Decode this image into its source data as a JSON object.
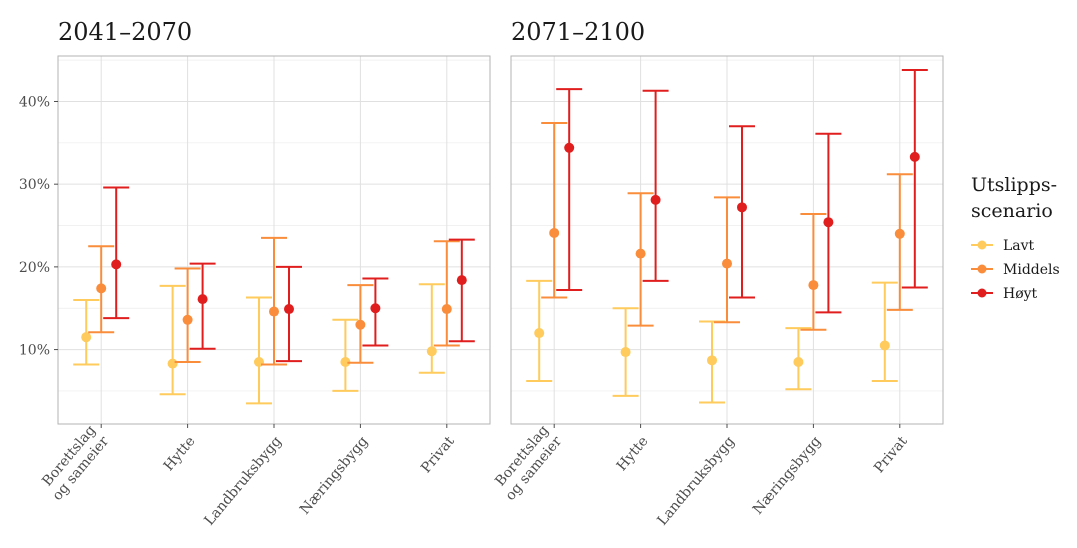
{
  "chart_data": {
    "type": "errorbar",
    "y_axis": {
      "ylim": [
        1,
        45.5
      ],
      "ticks": [
        10,
        20,
        30,
        40
      ],
      "tick_labels": [
        "10%",
        "20%",
        "30%",
        "40%"
      ],
      "minor_ticks": [
        5,
        15,
        25,
        35,
        45
      ]
    },
    "grid": true,
    "legend": {
      "title_lines": [
        "Utslipps-",
        "scenario"
      ],
      "position": "right",
      "items": [
        {
          "label": "Lavt",
          "color": "#fecb5c"
        },
        {
          "label": "Middels",
          "color": "#f98d3c"
        },
        {
          "label": "Høyt",
          "color": "#e01e1e"
        }
      ]
    },
    "categories": [
      {
        "lines": [
          "Borettslag",
          "og sameier"
        ]
      },
      {
        "lines": [
          "Hytte"
        ]
      },
      {
        "lines": [
          "Landbruksbygg"
        ]
      },
      {
        "lines": [
          "Næringsbygg"
        ]
      },
      {
        "lines": [
          "Privat"
        ]
      }
    ],
    "panels": [
      {
        "title": "2041–2070",
        "series": [
          {
            "name": "Lavt",
            "points": [
              {
                "mid": 11.5,
                "low": 8.2,
                "high": 16.0
              },
              {
                "mid": 8.3,
                "low": 4.6,
                "high": 17.7
              },
              {
                "mid": 8.5,
                "low": 3.5,
                "high": 16.3
              },
              {
                "mid": 8.5,
                "low": 5.0,
                "high": 13.6
              },
              {
                "mid": 9.8,
                "low": 7.2,
                "high": 17.9
              }
            ]
          },
          {
            "name": "Middels",
            "points": [
              {
                "mid": 17.4,
                "low": 12.1,
                "high": 22.5
              },
              {
                "mid": 13.6,
                "low": 8.5,
                "high": 19.8
              },
              {
                "mid": 14.6,
                "low": 8.2,
                "high": 23.5
              },
              {
                "mid": 13.0,
                "low": 8.4,
                "high": 17.8
              },
              {
                "mid": 14.9,
                "low": 10.5,
                "high": 23.1
              }
            ]
          },
          {
            "name": "Høyt",
            "points": [
              {
                "mid": 20.3,
                "low": 13.8,
                "high": 29.6
              },
              {
                "mid": 16.1,
                "low": 10.1,
                "high": 20.4
              },
              {
                "mid": 14.9,
                "low": 8.6,
                "high": 20.0
              },
              {
                "mid": 15.0,
                "low": 10.5,
                "high": 18.6
              },
              {
                "mid": 18.4,
                "low": 11.0,
                "high": 23.3
              }
            ]
          }
        ]
      },
      {
        "title": "2071–2100",
        "series": [
          {
            "name": "Lavt",
            "points": [
              {
                "mid": 12.0,
                "low": 6.2,
                "high": 18.3
              },
              {
                "mid": 9.7,
                "low": 4.4,
                "high": 15.0
              },
              {
                "mid": 8.7,
                "low": 3.6,
                "high": 13.4
              },
              {
                "mid": 8.5,
                "low": 5.2,
                "high": 12.6
              },
              {
                "mid": 10.5,
                "low": 6.2,
                "high": 18.1
              }
            ]
          },
          {
            "name": "Middels",
            "points": [
              {
                "mid": 24.1,
                "low": 16.3,
                "high": 37.4
              },
              {
                "mid": 21.6,
                "low": 12.9,
                "high": 28.9
              },
              {
                "mid": 20.4,
                "low": 13.3,
                "high": 28.4
              },
              {
                "mid": 17.8,
                "low": 12.4,
                "high": 26.4
              },
              {
                "mid": 24.0,
                "low": 14.8,
                "high": 31.2
              }
            ]
          },
          {
            "name": "Høyt",
            "points": [
              {
                "mid": 34.4,
                "low": 17.2,
                "high": 41.5
              },
              {
                "mid": 28.1,
                "low": 18.3,
                "high": 41.3
              },
              {
                "mid": 27.2,
                "low": 16.3,
                "high": 37.0
              },
              {
                "mid": 25.4,
                "low": 14.5,
                "high": 36.1
              },
              {
                "mid": 33.3,
                "low": 17.5,
                "high": 43.8
              }
            ]
          }
        ]
      }
    ]
  }
}
